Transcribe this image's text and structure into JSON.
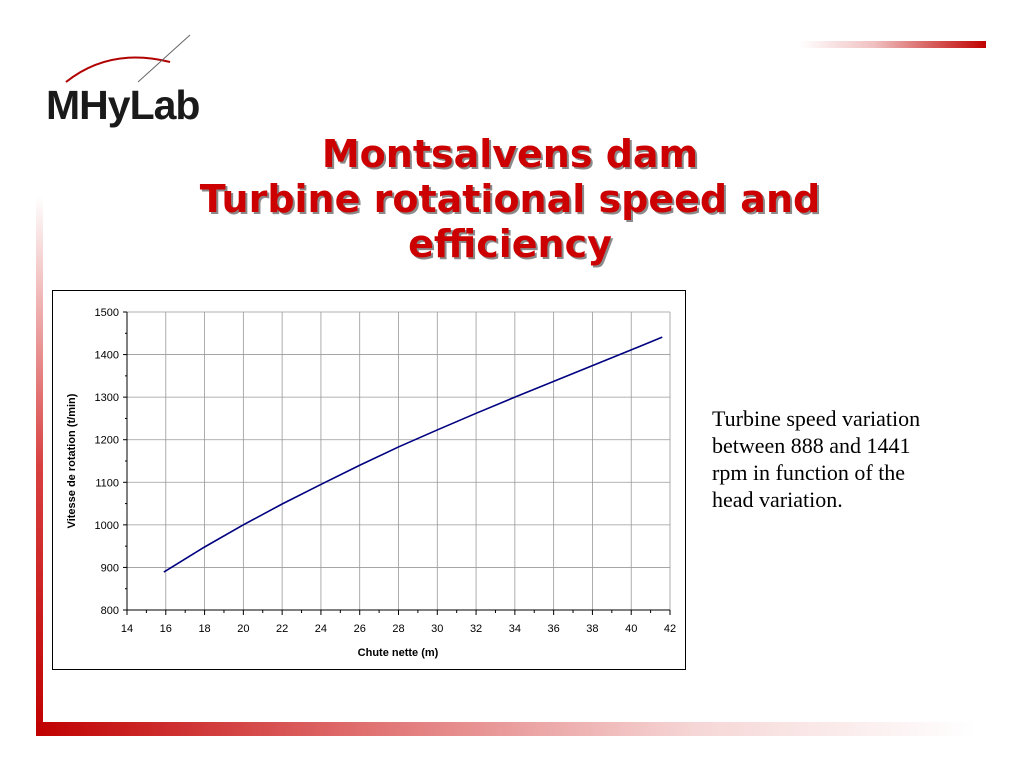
{
  "logo": {
    "text": "MHyLab"
  },
  "title": {
    "line1": "Montsalvens dam",
    "line2": "Turbine rotational speed and",
    "line3": "efficiency"
  },
  "description": {
    "line1": "Turbine speed variation",
    "line2": "between 888 and 1441",
    "line3": "rpm in function of the",
    "line4": "head variation."
  },
  "colors": {
    "accent": "#cc0000",
    "line": "#000080"
  },
  "chart_data": {
    "type": "line",
    "title": "",
    "xlabel": "Chute nette (m)",
    "ylabel": "Vitesse de rotation (t/min)",
    "xlim": [
      14,
      42
    ],
    "ylim": [
      800,
      1500
    ],
    "xticks": [
      14,
      16,
      18,
      20,
      22,
      24,
      26,
      28,
      30,
      32,
      34,
      36,
      38,
      40,
      42
    ],
    "yticks": [
      800,
      900,
      1000,
      1100,
      1200,
      1300,
      1400,
      1500
    ],
    "grid": true,
    "series": [
      {
        "x": [
          15.9,
          18,
          20,
          22,
          24,
          26,
          28,
          30,
          32,
          34,
          36,
          38,
          40,
          41.6
        ],
        "y": [
          889,
          948,
          1000,
          1049,
          1095,
          1140,
          1183,
          1223,
          1262,
          1300,
          1337,
          1374,
          1411,
          1441
        ]
      }
    ]
  }
}
